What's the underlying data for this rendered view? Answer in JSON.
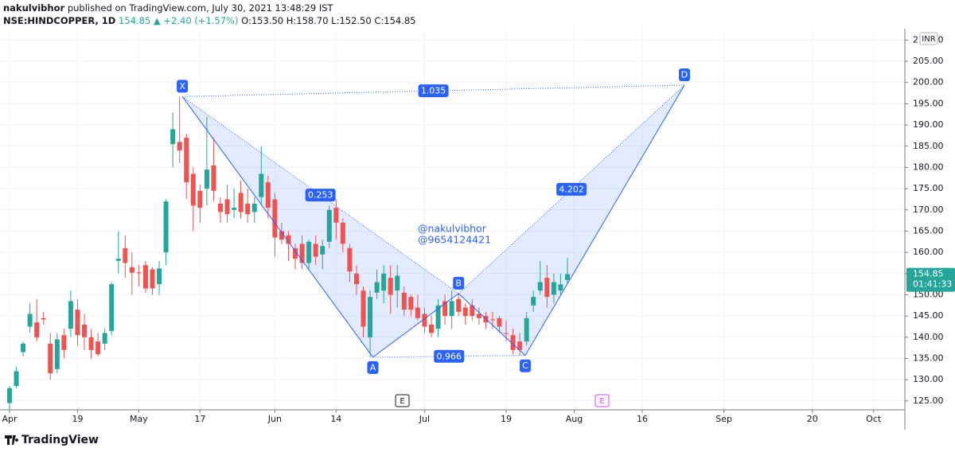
{
  "chart_data": {
    "type": "candlestick",
    "header": {
      "author": "nakulvibhor",
      "published": "published on TradingView.com, July 30, 2021 13:48:29 IST",
      "symbol": "NSE:HINDCOPPER, 1D",
      "last": "154.85",
      "change": "▲ +2.40 (+1.57%)",
      "ohlc": [
        "O:153.50",
        "H:158.70",
        "L:152.50",
        "C:154.85"
      ]
    },
    "x": [
      0,
      1,
      2,
      3,
      4,
      5,
      6,
      7,
      8,
      9,
      10,
      11,
      12,
      13,
      14,
      15,
      16,
      17,
      18,
      19,
      20,
      21,
      22,
      23,
      24,
      25,
      26,
      27,
      28,
      29,
      30,
      31,
      32,
      33,
      34,
      35,
      36,
      37,
      38,
      39,
      40,
      41,
      42,
      43,
      44,
      45,
      46,
      47,
      48,
      49,
      50,
      51,
      52,
      53,
      54,
      55,
      56,
      57,
      58,
      59,
      60,
      61,
      62,
      63,
      64,
      65,
      66,
      67,
      68,
      69,
      70,
      71,
      72,
      73,
      74,
      75,
      76,
      77,
      78,
      79,
      80,
      81,
      82
    ],
    "open": [
      124.5,
      128.5,
      136.5,
      142.5,
      143.5,
      144.5,
      138.5,
      132.5,
      140.5,
      142,
      146.5,
      143,
      140,
      139,
      138.5,
      141.5,
      158,
      161,
      156.5,
      155.3,
      157,
      156,
      152.5,
      160,
      185.5,
      186,
      187,
      178.5,
      174.5,
      175,
      180.5,
      171.5,
      172.5,
      170,
      174,
      171.5,
      169.5,
      173,
      176.5,
      172.5,
      165,
      164,
      161,
      162,
      157.5,
      162,
      159.5,
      162.5,
      170.5,
      167,
      161,
      155,
      151,
      140,
      150.5,
      151,
      154,
      151,
      150.5,
      149.5,
      147,
      145.5,
      143,
      142,
      148.5,
      145,
      149,
      147,
      147.5,
      145.5,
      145,
      144.2,
      144.5,
      141,
      140.5,
      139,
      139,
      147.5,
      151,
      154,
      150,
      151,
      153.5
    ],
    "high": [
      128.5,
      133,
      139,
      148,
      149,
      146,
      141,
      141,
      142,
      151,
      149,
      145.5,
      142,
      141,
      142,
      153,
      165,
      164,
      160,
      157,
      158,
      156.5,
      158,
      172.5,
      193,
      196.7,
      188,
      180,
      176,
      192,
      187,
      173,
      176,
      175,
      177,
      175,
      173,
      185,
      178,
      174,
      167,
      165,
      162,
      164,
      163,
      164,
      163,
      171,
      172.5,
      168,
      162,
      157,
      152,
      151,
      156,
      157,
      157,
      157,
      152,
      150,
      150,
      147,
      145,
      149,
      150,
      151,
      150.3,
      148,
      149,
      147,
      146,
      146,
      145,
      144,
      142,
      141,
      146,
      151,
      158,
      157,
      155,
      155,
      158.7
    ],
    "low": [
      123,
      128,
      135.5,
      141,
      139,
      143,
      130,
      131.5,
      135,
      140,
      138,
      137,
      135,
      135.5,
      137,
      140.5,
      155,
      154,
      150,
      152,
      150.5,
      150,
      150,
      157,
      180,
      181,
      172.5,
      165,
      167,
      171,
      172,
      167,
      167,
      168,
      168,
      167,
      167,
      171,
      168,
      159,
      162,
      158,
      156,
      156,
      156,
      157,
      156,
      161,
      163,
      160,
      153,
      150,
      140,
      135.3,
      149,
      148,
      145.5,
      147,
      145,
      145,
      144,
      141,
      140,
      140,
      143,
      142,
      145,
      143,
      144,
      143,
      142,
      142,
      141,
      139,
      136,
      135.7,
      138,
      146,
      150,
      147,
      148,
      150,
      152.5
    ],
    "close": [
      128,
      132,
      138.5,
      145.5,
      140,
      144.2,
      131.5,
      139.5,
      137,
      148.5,
      140.5,
      140,
      137,
      136,
      141,
      152.5,
      158.5,
      157.5,
      155.2,
      155.1,
      151.5,
      151.5,
      156.2,
      172,
      189,
      184,
      176.5,
      171,
      170.5,
      179.5,
      174.5,
      169.5,
      169,
      170.5,
      169.5,
      169,
      171.5,
      178.5,
      170.5,
      163.5,
      163,
      162,
      158.5,
      157.5,
      162.5,
      159,
      161.5,
      170,
      167,
      162,
      155.5,
      152.5,
      142.5,
      149.5,
      153,
      155,
      150,
      154.5,
      146.5,
      146.5,
      144.5,
      142.5,
      141,
      147.5,
      145,
      148.5,
      146,
      145,
      145,
      144.5,
      143.5,
      144,
      142.5,
      140.8,
      137,
      137,
      144.5,
      149.5,
      153,
      149.5,
      153,
      152.45,
      154.85
    ],
    "up_color": "#26a69a",
    "down_color": "#ef5350",
    "xlim": [
      -1.4,
      131.6
    ],
    "xticks": [
      {
        "value": 0,
        "label": "Apr"
      },
      {
        "value": 10,
        "label": "19"
      },
      {
        "value": 19,
        "label": "May"
      },
      {
        "value": 28,
        "label": "17"
      },
      {
        "value": 39,
        "label": "Jun"
      },
      {
        "value": 48,
        "label": "14"
      },
      {
        "value": 61,
        "label": "Jul"
      },
      {
        "value": 73,
        "label": "19"
      },
      {
        "value": 83,
        "label": "Aug"
      },
      {
        "value": 93,
        "label": "16"
      },
      {
        "value": 105,
        "label": "Sep"
      },
      {
        "value": 118,
        "label": "20"
      },
      {
        "value": 127,
        "label": "Oct"
      }
    ],
    "ylim": [
      122.9,
      212.7
    ],
    "yticks": [
      {
        "value": 125,
        "label": "125.00"
      },
      {
        "value": 130,
        "label": "130.00"
      },
      {
        "value": 135,
        "label": "135.00"
      },
      {
        "value": 140,
        "label": "140.00"
      },
      {
        "value": 145,
        "label": "145.00"
      },
      {
        "value": 150,
        "label": "150.00"
      },
      {
        "value": 155,
        "label": "155.00"
      },
      {
        "value": 160,
        "label": "160.00"
      },
      {
        "value": 165,
        "label": "165.00"
      },
      {
        "value": 170,
        "label": "170.00"
      },
      {
        "value": 175,
        "label": "175.00"
      },
      {
        "value": 180,
        "label": "180.00"
      },
      {
        "value": 185,
        "label": "185.00"
      },
      {
        "value": 190,
        "label": "190.00"
      },
      {
        "value": 195,
        "label": "195.00"
      },
      {
        "value": 200,
        "label": "200.00"
      },
      {
        "value": 205,
        "label": "205.00"
      },
      {
        "value": 210,
        "label": "210.00"
      }
    ],
    "grid": true,
    "pattern": {
      "color": "#2962ff",
      "points": [
        {
          "label": "X",
          "x": 25.4,
          "y": 196.7
        },
        {
          "label": "A",
          "x": 53.4,
          "y": 135.3
        },
        {
          "label": "B",
          "x": 66,
          "y": 150.3
        },
        {
          "label": "C",
          "x": 75.8,
          "y": 135.7
        },
        {
          "label": "D",
          "x": 99.2,
          "y": 199.4
        }
      ],
      "ratios": [
        "1.035",
        "0.253",
        "0.966",
        "4.202"
      ]
    },
    "watermark": [
      "@nakulvibhor",
      "@9654124421"
    ],
    "events": [
      "E",
      "E"
    ],
    "currency": "INR",
    "price_label": "154.85",
    "countdown": "01:41:33",
    "brand": "TradingView"
  }
}
